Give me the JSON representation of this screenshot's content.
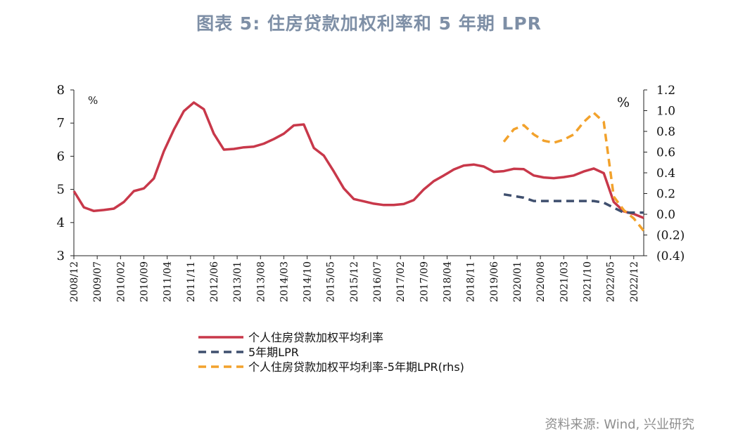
{
  "title": "图表 5:  住房贷款加权利率和 5 年期 LPR",
  "source": "资料来源: Wind, 兴业研究",
  "chart_data": {
    "type": "line",
    "unit_left": "%",
    "unit_right": "%",
    "y_left": {
      "min": 3,
      "max": 8,
      "ticks": [
        "3",
        "4",
        "5",
        "6",
        "7",
        "8"
      ]
    },
    "y_right": {
      "min": -0.4,
      "max": 1.2,
      "ticks": [
        {
          "v": 1.2,
          "label": "1.2"
        },
        {
          "v": 1.0,
          "label": "1.0"
        },
        {
          "v": 0.8,
          "label": "0.8"
        },
        {
          "v": 0.6,
          "label": "0.6"
        },
        {
          "v": 0.4,
          "label": "0.4"
        },
        {
          "v": 0.2,
          "label": "0.2"
        },
        {
          "v": 0.0,
          "label": "0.0"
        },
        {
          "v": -0.2,
          "label": "(0.2)"
        },
        {
          "v": -0.4,
          "label": "(0.4)"
        }
      ],
      "negative_label_color": "#e00000"
    },
    "x_categories": [
      "2008/12",
      "2009/07",
      "2010/02",
      "2010/09",
      "2011/04",
      "2011/11",
      "2012/06",
      "2013/01",
      "2013/08",
      "2014/03",
      "2014/10",
      "2015/05",
      "2015/12",
      "2016/07",
      "2017/02",
      "2017/09",
      "2018/04",
      "2018/11",
      "2019/06",
      "2020/01",
      "2020/08",
      "2021/03",
      "2021/10",
      "2022/05",
      "2022/12"
    ],
    "series": [
      {
        "name": "个人住房贷款加权平均利率",
        "axis": "left",
        "color": "#c8384a",
        "style": "solid",
        "points": [
          [
            "2008/12",
            4.95
          ],
          [
            "2009/03",
            4.46
          ],
          [
            "2009/06",
            4.35
          ],
          [
            "2009/09",
            4.38
          ],
          [
            "2009/12",
            4.42
          ],
          [
            "2010/03",
            4.62
          ],
          [
            "2010/06",
            4.95
          ],
          [
            "2010/09",
            5.03
          ],
          [
            "2010/12",
            5.33
          ],
          [
            "2011/03",
            6.15
          ],
          [
            "2011/06",
            6.8
          ],
          [
            "2011/09",
            7.36
          ],
          [
            "2011/12",
            7.62
          ],
          [
            "2012/03",
            7.42
          ],
          [
            "2012/06",
            6.68
          ],
          [
            "2012/09",
            6.2
          ],
          [
            "2012/12",
            6.22
          ],
          [
            "2013/03",
            6.27
          ],
          [
            "2013/06",
            6.29
          ],
          [
            "2013/09",
            6.38
          ],
          [
            "2013/12",
            6.52
          ],
          [
            "2014/03",
            6.68
          ],
          [
            "2014/06",
            6.93
          ],
          [
            "2014/09",
            6.96
          ],
          [
            "2014/12",
            6.25
          ],
          [
            "2015/03",
            6.02
          ],
          [
            "2015/06",
            5.54
          ],
          [
            "2015/09",
            5.03
          ],
          [
            "2015/12",
            4.71
          ],
          [
            "2016/03",
            4.64
          ],
          [
            "2016/06",
            4.57
          ],
          [
            "2016/09",
            4.53
          ],
          [
            "2016/12",
            4.53
          ],
          [
            "2017/03",
            4.56
          ],
          [
            "2017/06",
            4.68
          ],
          [
            "2017/09",
            5.0
          ],
          [
            "2017/12",
            5.25
          ],
          [
            "2018/03",
            5.42
          ],
          [
            "2018/06",
            5.6
          ],
          [
            "2018/09",
            5.72
          ],
          [
            "2018/12",
            5.75
          ],
          [
            "2019/03",
            5.69
          ],
          [
            "2019/06",
            5.53
          ],
          [
            "2019/09",
            5.55
          ],
          [
            "2019/12",
            5.62
          ],
          [
            "2020/03",
            5.61
          ],
          [
            "2020/06",
            5.42
          ],
          [
            "2020/09",
            5.36
          ],
          [
            "2020/12",
            5.34
          ],
          [
            "2021/03",
            5.37
          ],
          [
            "2021/06",
            5.42
          ],
          [
            "2021/09",
            5.54
          ],
          [
            "2021/12",
            5.63
          ],
          [
            "2022/03",
            5.49
          ],
          [
            "2022/06",
            4.62
          ],
          [
            "2022/09",
            4.34
          ],
          [
            "2022/12",
            4.26
          ],
          [
            "2023/03",
            4.14
          ]
        ]
      },
      {
        "name": "5年期LPR",
        "axis": "left",
        "color": "#3f4f6e",
        "style": "dashed",
        "points": [
          [
            "2019/09",
            4.85
          ],
          [
            "2019/12",
            4.8
          ],
          [
            "2020/03",
            4.75
          ],
          [
            "2020/06",
            4.65
          ],
          [
            "2020/09",
            4.65
          ],
          [
            "2020/12",
            4.65
          ],
          [
            "2021/03",
            4.65
          ],
          [
            "2021/06",
            4.65
          ],
          [
            "2021/09",
            4.65
          ],
          [
            "2021/12",
            4.65
          ],
          [
            "2022/03",
            4.6
          ],
          [
            "2022/06",
            4.45
          ],
          [
            "2022/09",
            4.3
          ],
          [
            "2022/12",
            4.3
          ],
          [
            "2023/03",
            4.3
          ]
        ]
      },
      {
        "name": "个人住房贷款加权平均利率-5年期LPR(rhs)",
        "axis": "right",
        "color": "#f2a22c",
        "style": "dashed",
        "points": [
          [
            "2019/09",
            0.7
          ],
          [
            "2019/12",
            0.82
          ],
          [
            "2020/03",
            0.86
          ],
          [
            "2020/06",
            0.77
          ],
          [
            "2020/09",
            0.71
          ],
          [
            "2020/12",
            0.69
          ],
          [
            "2021/03",
            0.72
          ],
          [
            "2021/06",
            0.77
          ],
          [
            "2021/09",
            0.89
          ],
          [
            "2021/12",
            0.98
          ],
          [
            "2022/03",
            0.89
          ],
          [
            "2022/06",
            0.17
          ],
          [
            "2022/09",
            0.04
          ],
          [
            "2022/12",
            -0.04
          ],
          [
            "2023/03",
            -0.16
          ]
        ]
      }
    ],
    "legend": {
      "position": "bottom-center",
      "entries": [
        "个人住房贷款加权平均利率",
        "5年期LPR",
        "个人住房贷款加权平均利率-5年期LPR(rhs)"
      ]
    },
    "grid": false
  }
}
